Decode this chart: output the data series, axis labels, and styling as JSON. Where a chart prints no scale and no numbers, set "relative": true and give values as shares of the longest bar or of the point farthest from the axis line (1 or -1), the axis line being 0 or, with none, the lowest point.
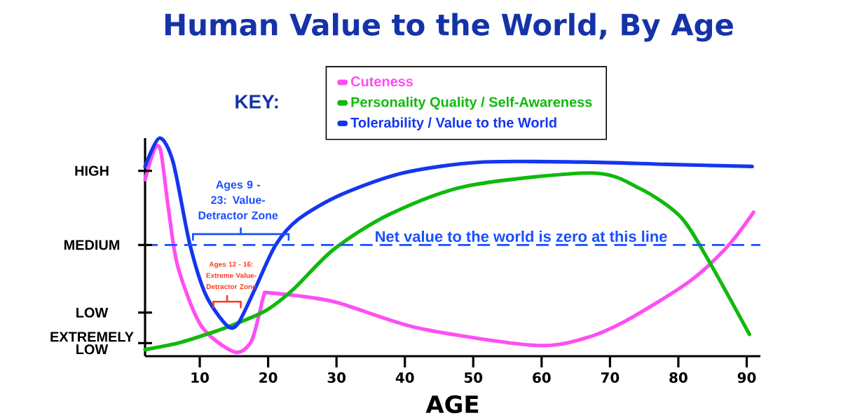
{
  "chart_data": {
    "type": "line",
    "title": "Human Value to the World, By Age",
    "xlabel": "AGE",
    "legend_title": "KEY:",
    "relative": true,
    "xlim": [
      2,
      92
    ],
    "xticks": [
      10,
      20,
      30,
      40,
      50,
      60,
      70,
      80,
      90
    ],
    "series": [
      {
        "name": "Cuteness",
        "color": "#ff4df5",
        "x": [
          2,
          3.4,
          4.3,
          5.4,
          6.8,
          10.2,
          15.0,
          17.4,
          18.6,
          19.4,
          20.4,
          29.6,
          41.8,
          58.8,
          66.1,
          72.2,
          81.5,
          87.1,
          91.0
        ],
        "values": [
          0.81,
          0.95,
          0.94,
          0.68,
          0.41,
          0.14,
          0.02,
          0.06,
          0.18,
          0.28,
          0.29,
          0.25,
          0.13,
          0.05,
          0.08,
          0.16,
          0.34,
          0.5,
          0.66
        ]
      },
      {
        "name": "Personality Quality / Self-Awareness",
        "color": "#10b90c",
        "x": [
          2,
          6.8,
          11.9,
          14.6,
          19.7,
          23.8,
          29.6,
          37.7,
          49.0,
          67.3,
          74.3,
          80.3,
          84.4,
          90.4
        ],
        "values": [
          0.03,
          0.06,
          0.11,
          0.14,
          0.21,
          0.31,
          0.49,
          0.65,
          0.78,
          0.84,
          0.77,
          0.64,
          0.44,
          0.1
        ]
      },
      {
        "name": "Tolerability / Value to the World",
        "color": "#1436f0",
        "x": [
          2,
          4.1,
          6.1,
          8.5,
          10.9,
          14.0,
          15.6,
          18.1,
          21.1,
          24.5,
          30.6,
          39.7,
          51.1,
          66.1,
          78.2,
          90.8
        ],
        "values": [
          0.87,
          1.0,
          0.89,
          0.52,
          0.28,
          0.14,
          0.15,
          0.31,
          0.51,
          0.63,
          0.74,
          0.84,
          0.89,
          0.89,
          0.88,
          0.87
        ]
      }
    ],
    "ref_lines": [
      {
        "axis": "y",
        "value": 0.51,
        "label": "Net value to the world is zero at this line",
        "color": "#1a4fff",
        "line_style": "dashed"
      }
    ],
    "annotations": [
      "Ages 9 - 23: Value-Detractor Zone",
      "Ages 12 - 16: Extreme Value-Detractor Zone",
      "HIGH",
      "MEDIUM",
      "LOW",
      "EXTREMELY LOW"
    ],
    "grid": false,
    "legend": "top",
    "marker": "none",
    "line_style": "solid"
  }
}
